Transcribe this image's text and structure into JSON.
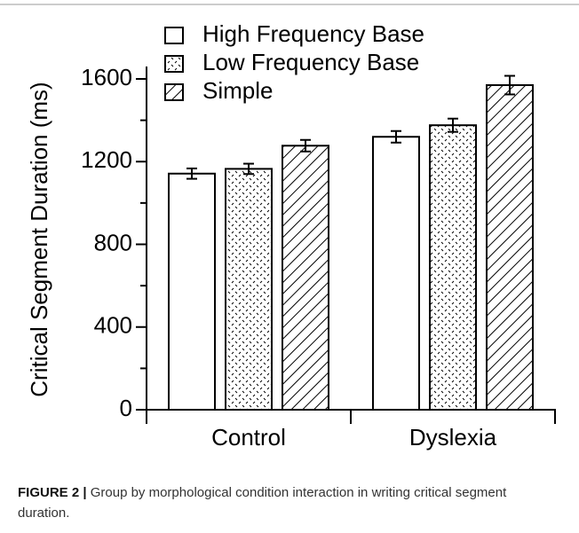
{
  "chart_data": {
    "type": "bar",
    "y_label": "Critical Segment Duration (ms)",
    "categories": [
      "Control",
      "Dyslexia"
    ],
    "series": [
      {
        "name": "High Frequency Base",
        "color": "#000000",
        "pattern": "none",
        "values": [
          1142,
          1320
        ],
        "errors": [
          25,
          28
        ]
      },
      {
        "name": "Low Frequency Base",
        "color": "#000000",
        "pattern": "dots",
        "values": [
          1165,
          1376
        ],
        "errors": [
          25,
          32
        ]
      },
      {
        "name": "Simple",
        "color": "#000000",
        "pattern": "hatch",
        "values": [
          1277,
          1570
        ],
        "errors": [
          28,
          45
        ]
      }
    ],
    "ylim": [
      0,
      1660
    ],
    "yticks": [
      0,
      400,
      800,
      1200,
      1600
    ],
    "minor_yticks": [
      200,
      600,
      1000,
      1400
    ],
    "legend": "top-left"
  },
  "caption": {
    "label": "FIGURE 2 |",
    "text": "Group by morphological condition interaction in writing critical segment duration."
  }
}
